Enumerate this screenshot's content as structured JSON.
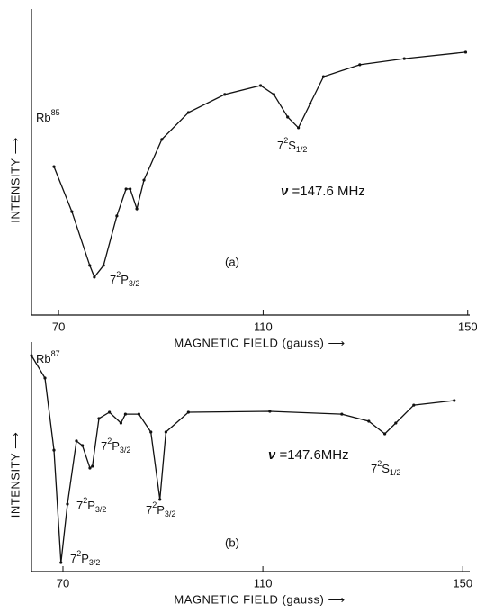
{
  "chart_data": [
    {
      "type": "line",
      "panel": "(a)",
      "xlabel": "MAGNETIC FIELD (gauss) ⟶",
      "ylabel": "INTENSITY ⟶",
      "xlim": [
        64.7,
        150.4
      ],
      "ylim": [
        0,
        100
      ],
      "xticks": [
        70,
        110,
        150
      ],
      "color": "#111111",
      "x": [
        69.1,
        72.6,
        76.1,
        77.0,
        78.8,
        81.4,
        83.2,
        84.0,
        85.3,
        86.7,
        90.2,
        95.4,
        102.5,
        109.5,
        112.1,
        114.8,
        116.9,
        119.2,
        121.8,
        128.9,
        137.6,
        149.6
      ],
      "values": [
        48.5,
        33.8,
        16.2,
        12.4,
        16.2,
        32.4,
        41.2,
        41.2,
        34.7,
        44.1,
        57.4,
        66.2,
        72.1,
        75.0,
        72.1,
        64.7,
        61.2,
        69.1,
        77.9,
        81.8,
        83.8,
        85.9
      ],
      "isotope": {
        "base": "Rb",
        "sup": "85"
      },
      "frequency": {
        "symbol": "ν",
        "text": " =147.6 MHz"
      },
      "annotations": [
        {
          "base": "7",
          "sup": "2",
          "term": "P",
          "sub": "3/2"
        },
        {
          "base": "7",
          "sup": "2",
          "term": "S",
          "sub": "1/2"
        }
      ]
    },
    {
      "type": "line",
      "panel": "(b)",
      "xlabel": "MAGNETIC FIELD (gauss) ⟶",
      "ylabel": "INTENSITY ⟶",
      "xlim": [
        63.7,
        151.4
      ],
      "ylim": [
        0,
        100
      ],
      "xticks": [
        70,
        110,
        150
      ],
      "color": "#111111",
      "x": [
        63.7,
        66.4,
        68.2,
        69.6,
        70.9,
        72.7,
        73.9,
        75.4,
        75.9,
        77.2,
        79.3,
        81.6,
        82.5,
        85.2,
        87.6,
        89.4,
        90.6,
        95.1,
        111.4,
        125.8,
        131.2,
        134.4,
        136.6,
        140.2,
        148.3
      ],
      "values": [
        94.1,
        84.3,
        52.9,
        3.9,
        29.4,
        56.9,
        54.9,
        45.1,
        45.9,
        66.7,
        69.4,
        64.7,
        68.6,
        68.6,
        60.8,
        31.4,
        60.8,
        69.4,
        69.8,
        68.6,
        65.5,
        60.0,
        64.7,
        72.5,
        74.5
      ],
      "isotope": {
        "base": "Rb",
        "sup": "87"
      },
      "frequency": {
        "symbol": "ν",
        "text": " =147.6MHz"
      },
      "annotations": [
        {
          "base": "7",
          "sup": "2",
          "term": "P",
          "sub": "3/2"
        },
        {
          "base": "7",
          "sup": "2",
          "term": "P",
          "sub": "3/2"
        },
        {
          "base": "7",
          "sup": "2",
          "term": "P",
          "sub": "3/2"
        },
        {
          "base": "7",
          "sup": "2",
          "term": "P",
          "sub": "3/2"
        },
        {
          "base": "7",
          "sup": "2",
          "term": "S",
          "sub": "1/2"
        }
      ]
    }
  ]
}
